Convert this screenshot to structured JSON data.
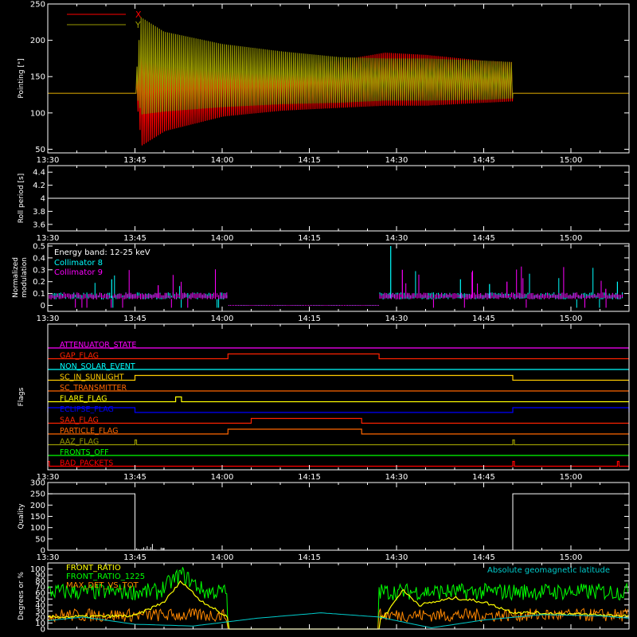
{
  "time_ticks": [
    "13:30",
    "13:45",
    "14:00",
    "14:15",
    "14:30",
    "14:45",
    "15:00"
  ],
  "chart_data": [
    {
      "id": "pointing",
      "type": "line",
      "ylabel": "Pointing [\"]",
      "ylim": [
        45,
        250
      ],
      "yticks": [
        50,
        100,
        150,
        200,
        250
      ],
      "legend_placement": "top-left",
      "series": [
        {
          "name": "X",
          "color": "#ff0000",
          "envelope_time": [
            "13:30",
            "13:45",
            "13:46",
            "13:50",
            "14:00",
            "14:10",
            "14:20",
            "14:28",
            "14:35",
            "14:45",
            "14:50",
            "15:10"
          ],
          "upper": [
            127,
            127,
            180,
            175,
            165,
            162,
            172,
            183,
            180,
            172,
            170,
            127
          ],
          "lower": [
            127,
            127,
            55,
            75,
            95,
            103,
            107,
            110,
            110,
            114,
            116,
            127
          ]
        },
        {
          "name": "Y",
          "color": "#999900",
          "envelope_time": [
            "13:30",
            "13:45",
            "13:46",
            "13:50",
            "14:00",
            "14:10",
            "14:20",
            "14:28",
            "14:35",
            "14:45",
            "14:50",
            "15:10"
          ],
          "upper": [
            127,
            127,
            232,
            212,
            195,
            185,
            177,
            175,
            175,
            172,
            170,
            127
          ],
          "lower": [
            127,
            127,
            98,
            102,
            108,
            112,
            114,
            117,
            117,
            118,
            120,
            127
          ]
        }
      ]
    },
    {
      "id": "roll",
      "type": "line",
      "ylabel": "Roll period [s]",
      "ylim": [
        3.5,
        4.5
      ],
      "yticks": [
        3.6,
        3.8,
        4.0,
        4.2,
        4.4
      ],
      "series": [
        {
          "color": "#ffffff",
          "time": [
            "13:30",
            "15:10"
          ],
          "values": [
            4.0,
            4.0
          ]
        }
      ]
    },
    {
      "id": "modulation",
      "type": "line",
      "ylabel": "Normalized modulation",
      "ylim": [
        -0.05,
        0.52
      ],
      "yticks": [
        0.0,
        0.1,
        0.2,
        0.3,
        0.4,
        0.5
      ],
      "title_lines": [
        "Energy band: 12-25 keV"
      ],
      "series": [
        {
          "name": "Collimator 8",
          "color": "#00ffff"
        },
        {
          "name": "Collimator 9",
          "color": "#ff00ff"
        }
      ],
      "zero_interval": [
        "14:01",
        "14:27"
      ]
    },
    {
      "id": "flags",
      "type": "line",
      "ylabel": "Flags",
      "flags": [
        {
          "name": "ATTENUATOR_STATE",
          "color": "#ff00ff",
          "high": []
        },
        {
          "name": "GAP_FLAG",
          "color": "#ff2200",
          "high": [
            [
              "14:01",
              "14:27"
            ]
          ]
        },
        {
          "name": "NON_SOLAR_EVENT",
          "color": "#00ffff",
          "high": []
        },
        {
          "name": "SC_IN_SUNLIGHT",
          "color": "#ffcc00",
          "high": [
            [
              "13:45",
              "14:50"
            ]
          ]
        },
        {
          "name": "SC_TRANSMITTER",
          "color": "#ff6600",
          "high": []
        },
        {
          "name": "FLARE_FLAG",
          "color": "#ffff00",
          "high": [
            [
              "13:52",
              "13:53"
            ]
          ]
        },
        {
          "name": "ECLIPSE_FLAG",
          "color": "#0000ff",
          "high": [
            [
              "13:30",
              "13:45"
            ],
            [
              "14:50",
              "15:10"
            ]
          ]
        },
        {
          "name": "SAA_FLAG",
          "color": "#ff2200",
          "high": [
            [
              "14:05",
              "14:24"
            ]
          ]
        },
        {
          "name": "PARTICLE_FLAG",
          "color": "#ff6600",
          "high": [
            [
              "14:01",
              "14:24"
            ]
          ]
        },
        {
          "name": "AAZ_FLAG",
          "color": "#999900",
          "high": [
            [
              "13:45",
              "13:45"
            ],
            [
              "14:50",
              "14:50"
            ]
          ]
        },
        {
          "name": "FRONTS_OFF",
          "color": "#00ff00",
          "high": []
        },
        {
          "name": "BAD_PACKETS",
          "color": "#ff0000",
          "high": [
            [
              "13:30",
              "13:30"
            ],
            [
              "14:50",
              "14:50"
            ],
            [
              "15:08",
              "15:08"
            ]
          ]
        }
      ]
    },
    {
      "id": "quality",
      "type": "line",
      "ylabel": "Quality",
      "ylim": [
        0,
        300
      ],
      "yticks": [
        0,
        50,
        100,
        150,
        200,
        250,
        300
      ],
      "series": [
        {
          "color": "#ffffff",
          "time": [
            "13:30",
            "13:45",
            "13:45",
            "14:50",
            "14:50",
            "15:10"
          ],
          "values": [
            250,
            250,
            0,
            0,
            250,
            250
          ]
        }
      ]
    },
    {
      "id": "ratios",
      "type": "line",
      "ylabel": "Degrees or %",
      "ylim": [
        0,
        110
      ],
      "yticks": [
        0,
        10,
        20,
        30,
        40,
        50,
        60,
        70,
        80,
        90,
        100
      ],
      "legend_placement": "top-left",
      "series": [
        {
          "name": "FRONT_RATIO",
          "color": "#ffff00",
          "time": [
            "13:30",
            "13:45",
            "13:50",
            "13:53",
            "13:56",
            "14:00",
            "14:01",
            "14:27",
            "14:28",
            "14:31",
            "14:34",
            "14:40",
            "14:45",
            "14:50",
            "15:10"
          ],
          "values": [
            20,
            22,
            45,
            80,
            50,
            25,
            20,
            20,
            22,
            65,
            40,
            52,
            45,
            28,
            22
          ]
        },
        {
          "name": "FRONT_RATIO_1225",
          "color": "#00ff00",
          "level": 62,
          "peak_time": "13:53",
          "peak": 92
        },
        {
          "name": "MAX_DET_VS_TOT",
          "color": "#ff8800",
          "level": 22
        },
        {
          "name": "Absolute geomagnetic latitude",
          "color": "#00cccc",
          "time": [
            "13:30",
            "13:36",
            "13:45",
            "13:55",
            "14:06",
            "14:17",
            "14:27",
            "14:36",
            "14:45",
            "14:55",
            "15:05",
            "15:10"
          ],
          "values": [
            14,
            20,
            8,
            5,
            18,
            27,
            20,
            2,
            15,
            24,
            22,
            18
          ]
        }
      ],
      "zero_interval": [
        "14:01",
        "14:27"
      ]
    }
  ]
}
